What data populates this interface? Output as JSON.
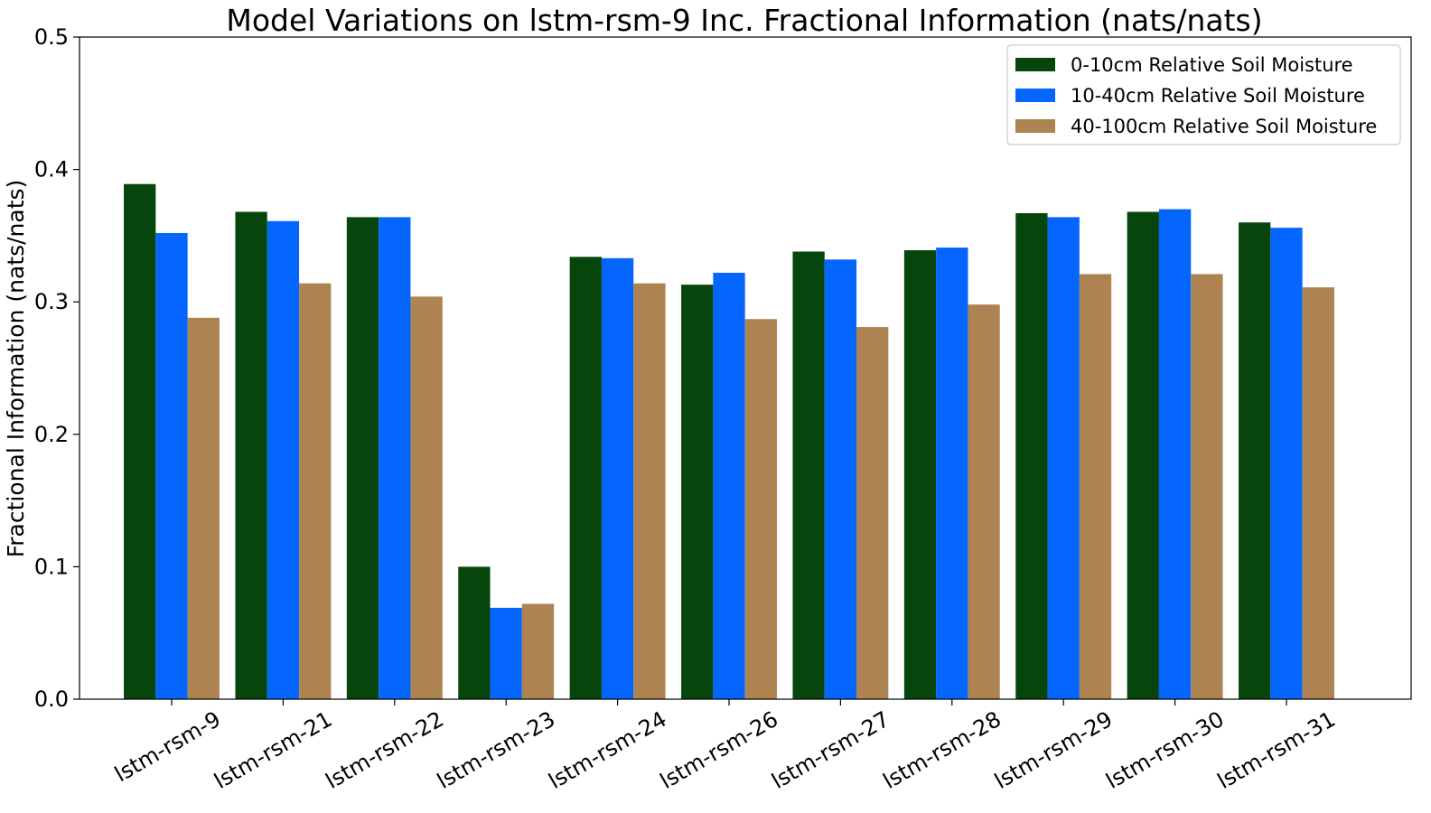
{
  "chart_data": {
    "type": "bar",
    "title": "Model Variations on lstm-rsm-9 Inc. Fractional Information (nats/nats)",
    "xlabel": "",
    "ylabel": "Fractional Information (nats/nats)",
    "ylim": [
      0,
      0.5
    ],
    "yticks": [
      "0.0",
      "0.1",
      "0.2",
      "0.3",
      "0.4",
      "0.5"
    ],
    "grid": false,
    "legend_position": "top-right",
    "categories": [
      "lstm-rsm-9",
      "lstm-rsm-21",
      "lstm-rsm-22",
      "lstm-rsm-23",
      "lstm-rsm-24",
      "lstm-rsm-26",
      "lstm-rsm-27",
      "lstm-rsm-28",
      "lstm-rsm-29",
      "lstm-rsm-30",
      "lstm-rsm-31"
    ],
    "series": [
      {
        "name": "0-10cm Relative Soil Moisture",
        "color": "#06460c",
        "values": [
          0.389,
          0.368,
          0.364,
          0.1,
          0.334,
          0.313,
          0.338,
          0.339,
          0.367,
          0.368,
          0.36
        ]
      },
      {
        "name": "10-40cm Relative Soil Moisture",
        "color": "#0565ff",
        "values": [
          0.352,
          0.361,
          0.364,
          0.069,
          0.333,
          0.322,
          0.332,
          0.341,
          0.364,
          0.37,
          0.356
        ]
      },
      {
        "name": "40-100cm Relative Soil Moisture",
        "color": "#ac8351",
        "values": [
          0.288,
          0.314,
          0.304,
          0.072,
          0.314,
          0.287,
          0.281,
          0.298,
          0.321,
          0.321,
          0.311
        ]
      }
    ]
  }
}
